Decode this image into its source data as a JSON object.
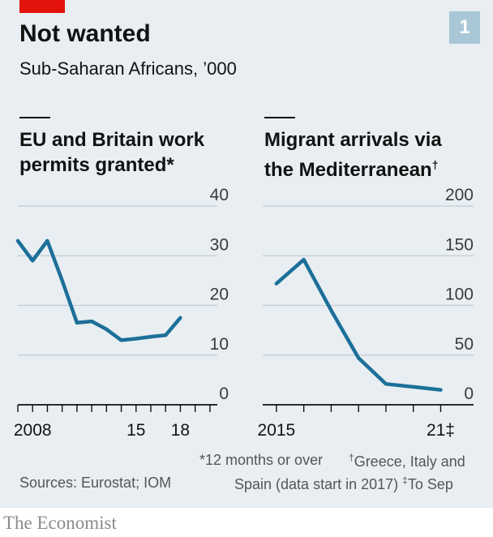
{
  "header": {
    "title": "Not wanted",
    "subtitle": "Sub-Saharan Africans, ’000",
    "badge": "1"
  },
  "colors": {
    "background": "#e8eef2",
    "line": "#1c6f99",
    "accent": "#e3120b",
    "badge": "#a9c7d6"
  },
  "chart_data": [
    {
      "type": "line",
      "title": "EU and Britain work permits granted*",
      "title_lines": [
        "EU and Britain work",
        "permits granted*"
      ],
      "x": [
        2007,
        2008,
        2009,
        2010,
        2011,
        2012,
        2013,
        2014,
        2015,
        2016,
        2017,
        2018
      ],
      "values": [
        33,
        29,
        33,
        25,
        16.5,
        16.8,
        15.2,
        13,
        13.3,
        13.7,
        14,
        17.5
      ],
      "xlim": [
        2007,
        2020.5
      ],
      "ylim": [
        0,
        40
      ],
      "yticks": [
        0,
        10,
        20,
        30,
        40
      ],
      "ytick_labels": [
        "0",
        "10",
        "20",
        "30",
        "40"
      ],
      "xticks": [
        2007,
        2008,
        2009,
        2010,
        2011,
        2012,
        2013,
        2014,
        2015,
        2016,
        2017,
        2018,
        2019,
        2020
      ],
      "xtick_labels": [
        {
          "x": 2008,
          "label": "2008"
        },
        {
          "x": 2015,
          "label": "15"
        },
        {
          "x": 2018,
          "label": "18"
        }
      ],
      "grid": true
    },
    {
      "type": "line",
      "title": "Migrant arrivals via the Mediterranean†",
      "title_lines": [
        "Migrant arrivals via",
        "the Mediterranean"
      ],
      "title_mark": "†",
      "x": [
        2015,
        2016,
        2017,
        2018,
        2019,
        2020,
        2021
      ],
      "values": [
        122,
        146,
        95,
        47,
        21,
        18,
        15
      ],
      "xlim": [
        2014.5,
        2022.2
      ],
      "ylim": [
        0,
        200
      ],
      "yticks": [
        0,
        50,
        100,
        150,
        200
      ],
      "ytick_labels": [
        "0",
        "50",
        "100",
        "150",
        "200"
      ],
      "xticks": [
        2015,
        2016,
        2017,
        2018,
        2019,
        2020,
        2021
      ],
      "xtick_labels": [
        {
          "x": 2015,
          "label": "2015"
        },
        {
          "x": 2021,
          "label": "21‡"
        }
      ],
      "grid": true
    }
  ],
  "footnotes": {
    "left": "*12 months or over",
    "right_line1_mark": "†",
    "right_line1": "Greece, Italy and",
    "right_line2": "Spain (data start in 2017)",
    "right_line2_mark": "‡",
    "right_line2_end": "To Sep"
  },
  "source": "Sources: Eurostat; IOM",
  "brand": "The Economist"
}
